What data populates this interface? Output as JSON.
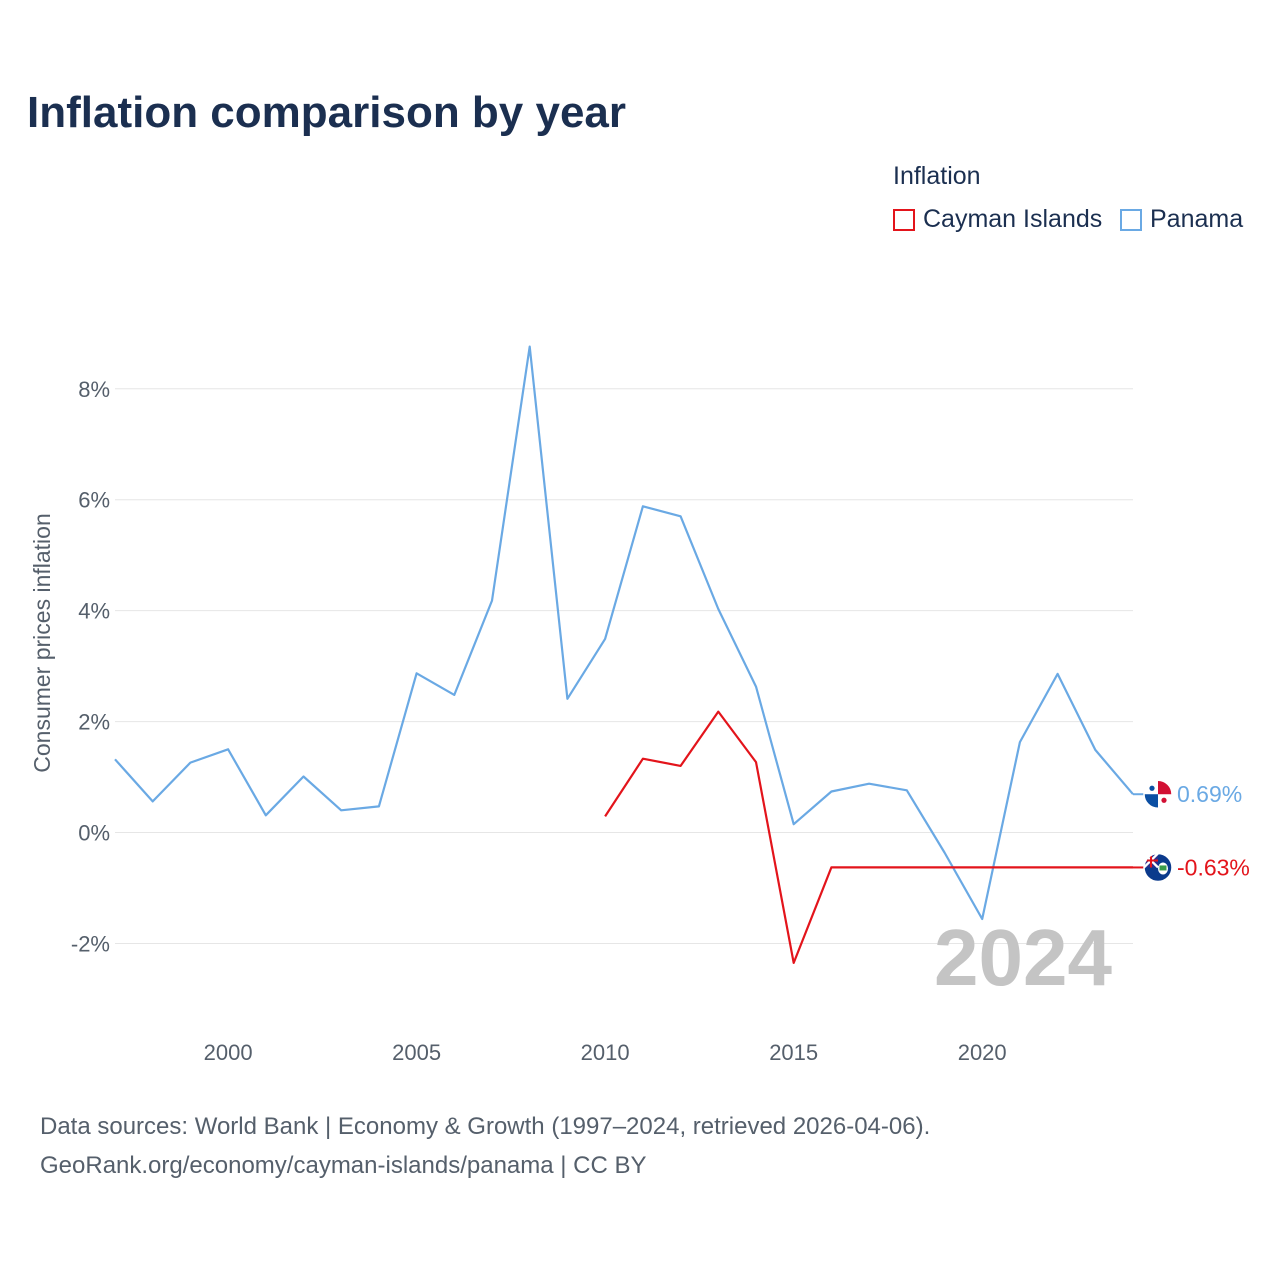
{
  "title": "Inflation comparison by year",
  "legend": {
    "title": "Inflation",
    "items": [
      {
        "label": "Cayman Islands",
        "color": "#e3141b"
      },
      {
        "label": "Panama",
        "color": "#6aa9e4"
      }
    ]
  },
  "footer": {
    "line1": "Data sources: World Bank | Economy & Growth (1997–2024, retrieved 2026-04-06).",
    "line2": "GeoRank.org/economy/cayman-islands/panama | CC BY"
  },
  "chart_data": {
    "type": "line",
    "title": "Inflation comparison by year",
    "xlabel": "",
    "ylabel": "Consumer prices inflation",
    "xlim": [
      1997,
      2024
    ],
    "ylim": [
      -3.2,
      9.6
    ],
    "yticks": [
      -2,
      0,
      2,
      4,
      6,
      8
    ],
    "ytick_labels": [
      "-2%",
      "0%",
      "2%",
      "4%",
      "6%",
      "8%"
    ],
    "xticks": [
      2000,
      2005,
      2010,
      2015,
      2020
    ],
    "xtick_labels": [
      "2000",
      "2005",
      "2010",
      "2015",
      "2020"
    ],
    "grid": true,
    "current_year_label": "2024",
    "series": [
      {
        "name": "Panama",
        "color": "#6aa9e4",
        "end_label": "0.69%",
        "flag": "panama-flag",
        "points": [
          [
            1997,
            1.32
          ],
          [
            1998,
            0.56
          ],
          [
            1999,
            1.26
          ],
          [
            2000,
            1.5
          ],
          [
            2001,
            0.31
          ],
          [
            2002,
            1.01
          ],
          [
            2003,
            0.4
          ],
          [
            2004,
            0.47
          ],
          [
            2005,
            2.87
          ],
          [
            2006,
            2.48
          ],
          [
            2007,
            4.18
          ],
          [
            2008,
            8.76
          ],
          [
            2009,
            2.41
          ],
          [
            2010,
            3.49
          ],
          [
            2011,
            5.88
          ],
          [
            2012,
            5.7
          ],
          [
            2013,
            4.03
          ],
          [
            2014,
            2.63
          ],
          [
            2015,
            0.15
          ],
          [
            2016,
            0.74
          ],
          [
            2017,
            0.88
          ],
          [
            2018,
            0.76
          ],
          [
            2019,
            -0.36
          ],
          [
            2020,
            -1.56
          ],
          [
            2021,
            1.63
          ],
          [
            2022,
            2.86
          ],
          [
            2023,
            1.49
          ],
          [
            2024,
            0.69
          ]
        ]
      },
      {
        "name": "Cayman Islands",
        "color": "#e3141b",
        "end_label": "-0.63%",
        "flag": "cayman-islands-flag",
        "points": [
          [
            2010,
            0.29
          ],
          [
            2011,
            1.33
          ],
          [
            2012,
            1.2
          ],
          [
            2013,
            2.18
          ],
          [
            2014,
            1.27
          ],
          [
            2015,
            -2.35
          ],
          [
            2016,
            -0.63
          ],
          [
            2017,
            -0.63
          ],
          [
            2018,
            -0.63
          ],
          [
            2019,
            -0.63
          ],
          [
            2020,
            -0.63
          ],
          [
            2021,
            -0.63
          ],
          [
            2022,
            -0.63
          ],
          [
            2023,
            -0.63
          ],
          [
            2024,
            -0.63
          ]
        ]
      }
    ]
  }
}
